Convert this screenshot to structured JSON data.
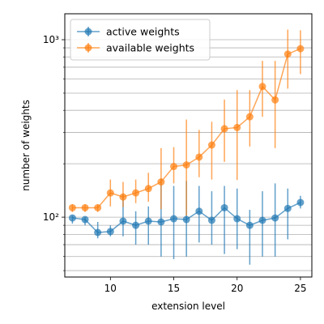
{
  "chart_data": {
    "type": "line",
    "title": "",
    "xlabel": "extension level",
    "ylabel": "number of weights",
    "x_scale": "linear",
    "y_scale": "log",
    "xlim": [
      6.4,
      25.9
    ],
    "ylim": [
      46,
      1400
    ],
    "x_ticks": [
      10,
      15,
      20,
      25
    ],
    "x_tick_labels": [
      "10",
      "15",
      "20",
      "25"
    ],
    "y_major_ticks": [
      100,
      1000
    ],
    "y_major_tick_labels": [
      "10²",
      "10³"
    ],
    "y_minor_ticks": [
      50,
      60,
      70,
      80,
      90,
      200,
      300,
      400,
      500,
      600,
      700,
      800,
      900
    ],
    "grid": "horizontal-major-and-minor",
    "legend_position": "top-left",
    "x": [
      7,
      8,
      9,
      10,
      11,
      12,
      13,
      14,
      15,
      16,
      17,
      18,
      19,
      20,
      21,
      22,
      23,
      24,
      25
    ],
    "series": [
      {
        "name": "active weights",
        "color": "#1f77b4",
        "values": [
          99,
          97,
          82,
          83,
          95,
          90,
          95,
          94,
          98,
          97,
          108,
          96,
          113,
          98,
          90,
          96,
          99,
          112,
          121
        ],
        "err_low": [
          92,
          90,
          76,
          78,
          78,
          70,
          70,
          60,
          58,
          60,
          72,
          70,
          62,
          66,
          54,
          60,
          60,
          75,
          112
        ],
        "err_high": [
          102,
          100,
          94,
          90,
          135,
          108,
          115,
          165,
          150,
          160,
          150,
          140,
          150,
          145,
          110,
          140,
          155,
          145,
          132
        ]
      },
      {
        "name": "available weights",
        "color": "#ff7f0e",
        "values": [
          113,
          113,
          113,
          137,
          130,
          137,
          145,
          158,
          193,
          197,
          218,
          255,
          315,
          320,
          368,
          545,
          458,
          830,
          890
        ],
        "err_low": [
          107,
          107,
          107,
          115,
          114,
          120,
          122,
          111,
          155,
          102,
          168,
          163,
          205,
          162,
          250,
          368,
          245,
          530,
          640
        ],
        "err_high": [
          118,
          118,
          118,
          163,
          158,
          163,
          178,
          245,
          248,
          355,
          310,
          345,
          460,
          520,
          520,
          760,
          760,
          1140,
          1130
        ]
      }
    ]
  }
}
